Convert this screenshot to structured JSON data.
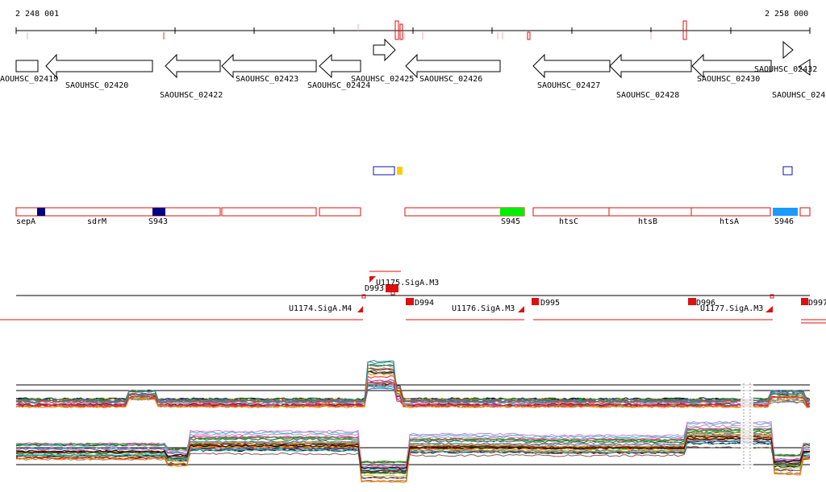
{
  "ruler": {
    "start_label": "2 248 001",
    "end_label": "2 258 000"
  },
  "genes": [
    {
      "label": "AOUHSC_02419",
      "strand": "+"
    },
    {
      "label": "SAOUHSC_02420",
      "strand": "-"
    },
    {
      "label": "SAOUHSC_02422",
      "strand": "-"
    },
    {
      "label": "SAOUHSC_02423",
      "strand": "-"
    },
    {
      "label": "SAOUHSC_02424",
      "strand": "-"
    },
    {
      "label": "SAOUHSC_02425",
      "strand": "+"
    },
    {
      "label": "SAOUHSC_02426",
      "strand": "-"
    },
    {
      "label": "SAOUHSC_02427",
      "strand": "-"
    },
    {
      "label": "SAOUHSC_02428",
      "strand": "-"
    },
    {
      "label": "SAOUHSC_02430",
      "strand": "-"
    },
    {
      "label": "SAOUHSC_02432",
      "strand": "+"
    },
    {
      "label": "SAOUHSC_024",
      "strand": "-"
    }
  ],
  "segments": [
    {
      "label": "sepA"
    },
    {
      "label": "sdrM"
    },
    {
      "label": "S943"
    },
    {
      "label": "S945"
    },
    {
      "label": "htsC"
    },
    {
      "label": "htsB"
    },
    {
      "label": "htsA"
    },
    {
      "label": "S946"
    }
  ],
  "promoters": [
    {
      "label": "U1174.SigA.M4"
    },
    {
      "label": "U1175.SigA.M3"
    },
    {
      "label": "U1176.SigA.M3"
    },
    {
      "label": "U1177.SigA.M3"
    }
  ],
  "terminators": [
    {
      "label": "D994"
    },
    {
      "label": "D995"
    },
    {
      "label": "D996"
    },
    {
      "label": "D997"
    },
    {
      "label": "D993"
    }
  ],
  "colors": {
    "feature_outline": "#dd1111",
    "dark_blue": "#000080",
    "green": "#00ee00",
    "light_blue": "#1a9bff",
    "yellow": "#ffcc00",
    "outline_blue": "#1111aa"
  }
}
